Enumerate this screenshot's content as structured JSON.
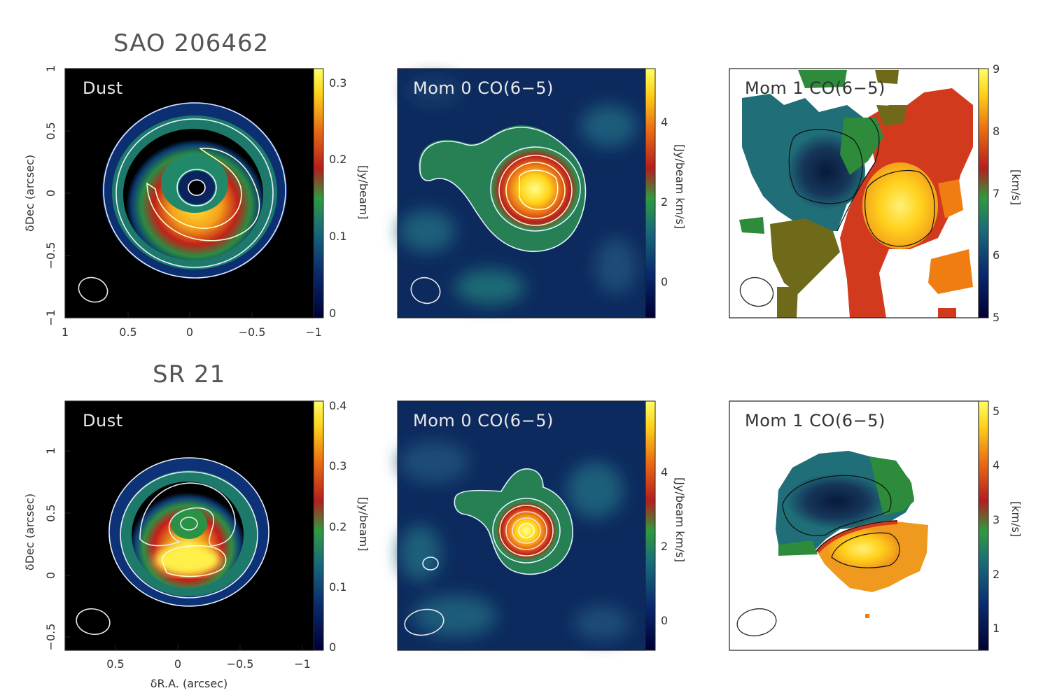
{
  "rows": [
    {
      "title": "SAO 206462",
      "panels": [
        {
          "kind": "dust",
          "label": "Dust",
          "cbar_ticks": [
            "0",
            "0.1",
            "0.2",
            "0.3"
          ],
          "cbar_unit": "[Jy/beam]",
          "x_ticks": [
            "1",
            "0.5",
            "0",
            "−0.5",
            "−1"
          ],
          "y_ticks": [
            "−1",
            "−0.5",
            "0",
            "0.5",
            "1"
          ],
          "y_title": "δDec (arcsec)"
        },
        {
          "kind": "mom0",
          "label": "Mom 0 CO(6−5)",
          "cbar_ticks": [
            "0",
            "2",
            "4"
          ],
          "cbar_unit": "[Jy/beam km/s]"
        },
        {
          "kind": "mom1",
          "label": "Mom 1 CO(6−5)",
          "cbar_ticks": [
            "5",
            "6",
            "7",
            "8",
            "9"
          ],
          "cbar_unit": "[km/s]"
        }
      ]
    },
    {
      "title": "SR 21",
      "panels": [
        {
          "kind": "dust",
          "label": "Dust",
          "cbar_ticks": [
            "0",
            "0.1",
            "0.2",
            "0.3",
            "0.4"
          ],
          "cbar_unit": "[Jy/beam]",
          "x_ticks": [
            "0.5",
            "0",
            "−0.5",
            "−1"
          ],
          "y_ticks": [
            "−0.5",
            "0",
            "0.5",
            "1"
          ],
          "y_title": "δDec (arcsec)",
          "x_title": "δR.A. (arcsec)"
        },
        {
          "kind": "mom0",
          "label": "Mom 0 CO(6−5)",
          "cbar_ticks": [
            "0",
            "2",
            "4"
          ],
          "cbar_unit": "[Jy/beam km/s]"
        },
        {
          "kind": "mom1",
          "label": "Mom 1 CO(6−5)",
          "cbar_ticks": [
            "1",
            "2",
            "3",
            "4",
            "5"
          ],
          "cbar_unit": "[km/s]"
        }
      ]
    }
  ],
  "colors": {
    "colormap": [
      "#000033",
      "#0a2a6e",
      "#1a6a7a",
      "#2f9a3e",
      "#b41e1e",
      "#e86a14",
      "#ffd21a",
      "#ffff66"
    ],
    "contour_light": "#e8eef5",
    "mom1_blue": "#16365a",
    "mom1_teal": "#1f6e78",
    "mom1_green": "#2e8b3c",
    "mom1_olive": "#6f6a1a",
    "mom1_red": "#d23a1e",
    "mom1_orange": "#ef7d12",
    "mom1_yellow": "#ffd11c"
  }
}
